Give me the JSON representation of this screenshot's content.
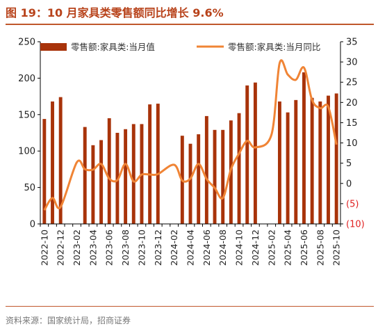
{
  "title": "图 19：10 月家具类零售额同比增长 9.6%",
  "source": "资料来源：国家统计局，招商证券",
  "chart_data": {
    "type": "bar+line",
    "categories": [
      "2022-10",
      "2022-11",
      "2022-12",
      "2023-01",
      "2023-02",
      "2023-03",
      "2023-04",
      "2023-05",
      "2023-06",
      "2023-07",
      "2023-08",
      "2023-09",
      "2023-10",
      "2023-11",
      "2023-12",
      "2024-01",
      "2024-02",
      "2024-03",
      "2024-04",
      "2024-05",
      "2024-06",
      "2024-07",
      "2024-08",
      "2024-09",
      "2024-10",
      "2024-11",
      "2024-12",
      "2025-01",
      "2025-02",
      "2025-03",
      "2025-04",
      "2025-05",
      "2025-06",
      "2025-07",
      "2025-08",
      "2025-09",
      "2025-10"
    ],
    "tick_labels": [
      "2022-10",
      "2022-12",
      "2023-02",
      "2023-04",
      "2023-06",
      "2023-08",
      "2023-10",
      "2023-12",
      "2024-02",
      "2024-04",
      "2024-06",
      "2024-08",
      "2024-10",
      "2024-12",
      "2025-02",
      "2025-04",
      "2025-06",
      "2025-08",
      "2025-10"
    ],
    "series": [
      {
        "name": "零售额:家具类:当月值",
        "type": "bar",
        "axis": "left",
        "color": "#a8330a",
        "values": [
          144,
          168,
          174,
          null,
          null,
          133,
          108,
          115,
          145,
          125,
          130,
          137,
          137,
          164,
          165,
          null,
          null,
          121,
          110,
          123,
          148,
          129,
          129,
          142,
          152,
          190,
          194,
          null,
          null,
          168,
          153,
          170,
          208,
          173,
          168,
          176,
          179
        ]
      },
      {
        "name": "零售额:家具类:当月同比",
        "type": "line",
        "axis": "right",
        "color": "#f08435",
        "values": [
          -6.6,
          -3.6,
          -5.8,
          null,
          5.2,
          3.5,
          3.4,
          4.8,
          1.2,
          0.8,
          4.8,
          0.5,
          2.2,
          2.2,
          2.3,
          null,
          4.6,
          0.7,
          1.2,
          4.8,
          1.1,
          -1.1,
          -3.6,
          3.5,
          7.4,
          10.5,
          8.9,
          null,
          12.1,
          29.7,
          26.9,
          25.6,
          28.6,
          20.6,
          18.6,
          18.9,
          9.6
        ]
      }
    ],
    "y_left": {
      "ticks": [
        "0",
        "50",
        "100",
        "150",
        "200",
        "250"
      ],
      "min": 0,
      "max": 250
    },
    "y_right": {
      "ticks": [
        "35",
        "30",
        "25",
        "20",
        "15",
        "10",
        "5",
        "0",
        "(5)",
        "(10)"
      ],
      "min": -10,
      "max": 35
    },
    "legend_placement": "top",
    "grid": false
  }
}
